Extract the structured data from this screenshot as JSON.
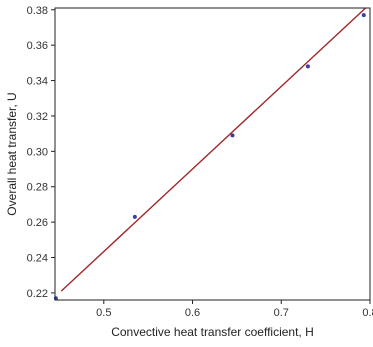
{
  "chart_data": {
    "type": "scatter",
    "title": "",
    "xlabel": "Convective heat transfer coefficient, H",
    "ylabel": "Overall heat transfer, U",
    "xlim": [
      0.445,
      0.8
    ],
    "ylim": [
      0.216,
      0.381
    ],
    "x_ticks": [
      0.5,
      0.6,
      0.7,
      0.8
    ],
    "x_tick_labels": [
      "0.5",
      "0.6",
      "0.7",
      "0.8"
    ],
    "y_ticks": [
      0.22,
      0.24,
      0.26,
      0.28,
      0.3,
      0.32,
      0.34,
      0.36,
      0.38
    ],
    "y_tick_labels": [
      "0.22",
      "0.24",
      "0.26",
      "0.28",
      "0.30",
      "0.32",
      "0.34",
      "0.36",
      "0.38"
    ],
    "grid": false,
    "legend": "none",
    "series": [
      {
        "type": "scatter",
        "color": "#3c3f9e",
        "points": [
          {
            "x": 0.446,
            "y": 0.217
          },
          {
            "x": 0.535,
            "y": 0.263
          },
          {
            "x": 0.645,
            "y": 0.309
          },
          {
            "x": 0.73,
            "y": 0.348
          },
          {
            "x": 0.793,
            "y": 0.377
          }
        ]
      },
      {
        "type": "line",
        "color": "#a02828",
        "points": [
          {
            "x": 0.452,
            "y": 0.221
          },
          {
            "x": 0.795,
            "y": 0.381
          }
        ]
      }
    ]
  }
}
